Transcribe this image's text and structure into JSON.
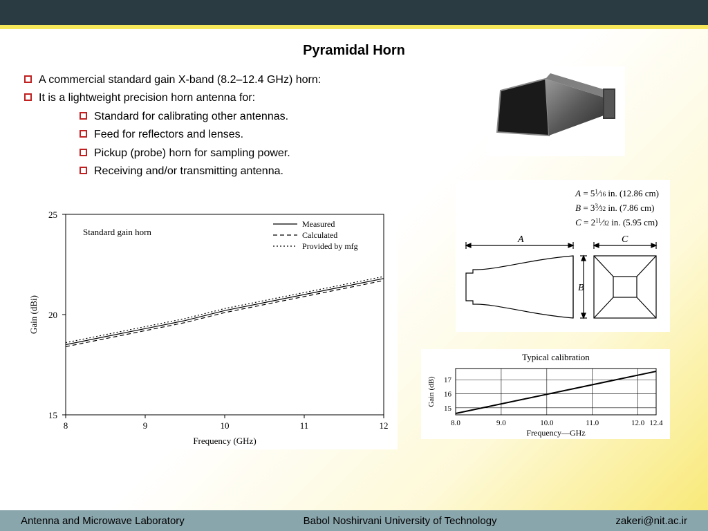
{
  "title": "Pyramidal Horn",
  "bullets": {
    "main1": "A commercial standard gain X-band (8.2–12.4 GHz) horn:",
    "main2": "It is a lightweight precision horn antenna for:",
    "sub1": "Standard for calibrating other antennas.",
    "sub2": "Feed for reflectors and lenses.",
    "sub3": "Pickup (probe) horn for sampling power.",
    "sub4": "Receiving and/or transmitting antenna."
  },
  "dimensions": {
    "A": "A = 5 1/16 in. (12.86 cm)",
    "B": "B = 3 3/32 in. (7.86 cm)",
    "C": "C = 2 11/32 in. (5.95 cm)",
    "label_A": "A",
    "label_B": "B",
    "label_C": "C"
  },
  "main_chart": {
    "type": "line",
    "title": "Standard gain horn",
    "xlabel": "Frequency (GHz)",
    "ylabel": "Gain (dBi)",
    "xlim": [
      8,
      12
    ],
    "ylim": [
      15,
      25
    ],
    "xticks": [
      8,
      9,
      10,
      11,
      12
    ],
    "yticks": [
      15,
      20,
      25
    ],
    "legend": {
      "items": [
        {
          "label": "Measured",
          "dash": "solid"
        },
        {
          "label": "Calculated",
          "dash": "dashed"
        },
        {
          "label": "Provided by mfg",
          "dash": "dotted"
        }
      ]
    },
    "series": {
      "measured": {
        "x": [
          8,
          8.5,
          9,
          9.5,
          10,
          10.5,
          11,
          11.5,
          12
        ],
        "y": [
          18.5,
          18.9,
          19.3,
          19.7,
          20.2,
          20.6,
          21.0,
          21.4,
          21.8
        ],
        "dash": "solid",
        "color": "#000"
      },
      "calculated": {
        "x": [
          8,
          8.5,
          9,
          9.5,
          10,
          10.5,
          11,
          11.5,
          12
        ],
        "y": [
          18.4,
          18.8,
          19.2,
          19.6,
          20.1,
          20.5,
          20.9,
          21.3,
          21.7
        ],
        "dash": "dashed",
        "color": "#000"
      },
      "mfg": {
        "x": [
          8,
          8.5,
          9,
          9.5,
          10,
          10.5,
          11,
          11.5,
          12
        ],
        "y": [
          18.6,
          19.0,
          19.4,
          19.8,
          20.3,
          20.7,
          21.1,
          21.5,
          21.9
        ],
        "dash": "dotted",
        "color": "#000"
      }
    },
    "line_width": 1.2,
    "axis_color": "#000",
    "background_color": "#ffffff",
    "grid": false,
    "font_size": 13
  },
  "calib_chart": {
    "type": "line",
    "title": "Typical calibration",
    "xlabel": "Frequency—GHz",
    "ylabel": "Gain (dB)",
    "xticks": [
      8.0,
      9.0,
      10.0,
      11.0,
      12.0,
      12.4
    ],
    "yticks": [
      15,
      16,
      17
    ],
    "series": {
      "x": [
        8.0,
        12.4
      ],
      "y": [
        14.6,
        17.6
      ],
      "color": "#000",
      "width": 2
    },
    "axis_color": "#000",
    "background_color": "#ffffff",
    "font_size": 11
  },
  "footer": {
    "left": "Antenna and Microwave Laboratory",
    "center": "Babol Noshirvani University of Technology",
    "right": "zakeri@nit.ac.ir"
  },
  "colors": {
    "top_bar": "#2a3b42",
    "yellow": "#f5e65a",
    "footer_bg": "#8aa6ad",
    "bullet_border": "#c02020",
    "horn_body": "#6a6a6a"
  }
}
